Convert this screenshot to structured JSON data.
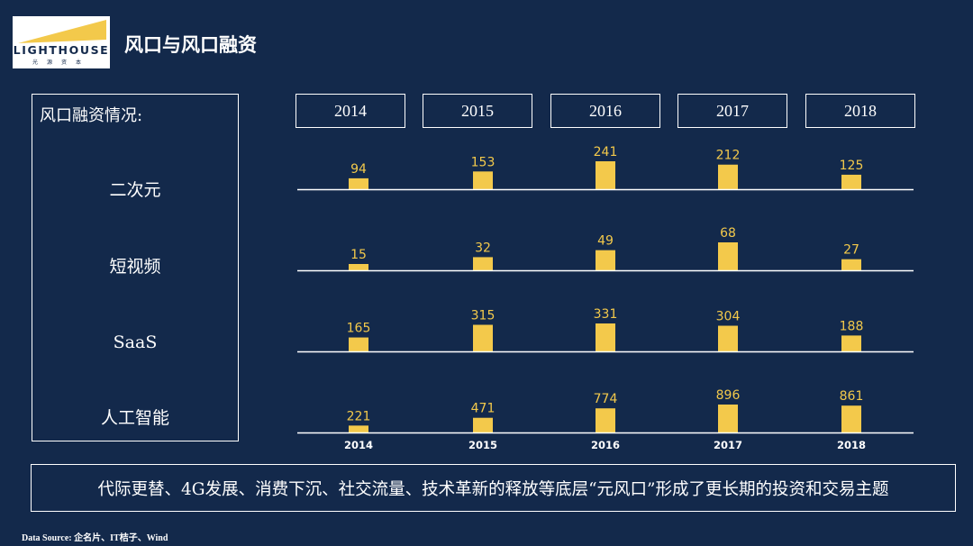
{
  "logo": {
    "word": "LIGHTHOUSE",
    "sub": "光源资本"
  },
  "header": {
    "title": "风口与风口融资"
  },
  "sidebar": {
    "title": "风口融资情况:",
    "rows": [
      "二次元",
      "短视频",
      "SaaS",
      "人工智能"
    ]
  },
  "years": [
    "2014",
    "2015",
    "2016",
    "2017",
    "2018"
  ],
  "chart_data": {
    "type": "bar",
    "categories": [
      "2014",
      "2015",
      "2016",
      "2017",
      "2018"
    ],
    "series": [
      {
        "name": "二次元",
        "values": [
          94,
          153,
          241,
          212,
          125
        ]
      },
      {
        "name": "短视频",
        "values": [
          15,
          32,
          49,
          68,
          27
        ]
      },
      {
        "name": "SaaS",
        "values": [
          165,
          315,
          331,
          304,
          188
        ]
      },
      {
        "name": "人工智能",
        "values": [
          221,
          471,
          774,
          896,
          861
        ]
      }
    ],
    "xlabel": "",
    "ylabel": "",
    "grid": false,
    "bar_color": "#f3c94b"
  },
  "footer": {
    "summary": "代际更替、4G发展、消费下沉、社交流量、技术革新的释放等底层“元风口”形成了更长期的投资和交易主题",
    "source": "Data Source: 企名片、IT桔子、Wind"
  },
  "colors": {
    "background": "#13294b",
    "bar": "#f3c94b",
    "line": "#ffffff"
  }
}
